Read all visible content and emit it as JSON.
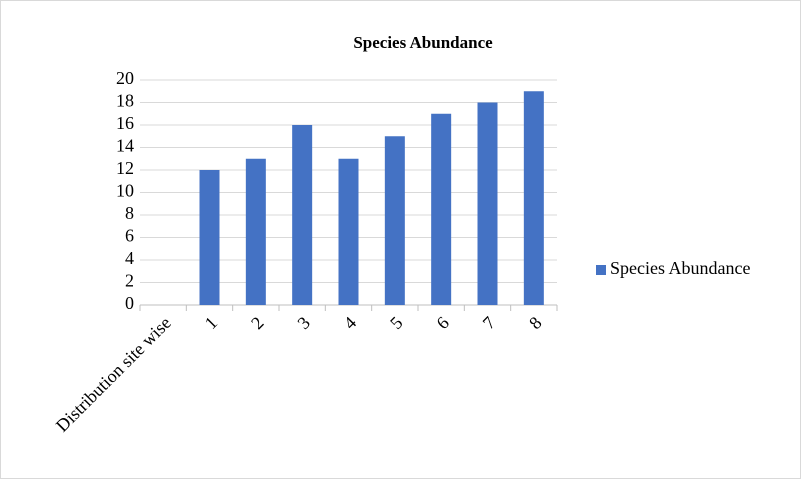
{
  "chart_data": {
    "type": "bar",
    "title": "Species Abundance",
    "categories": [
      "Distribution site wise",
      "1",
      "2",
      "3",
      "4",
      "5",
      "6",
      "7",
      "8"
    ],
    "series": [
      {
        "name": "Species Abundance",
        "color": "#4472c4",
        "values": [
          null,
          12,
          13,
          16,
          13,
          15,
          17,
          18,
          19
        ]
      }
    ],
    "ylim": [
      0,
      20
    ],
    "yticks": [
      0,
      2,
      4,
      6,
      8,
      10,
      12,
      14,
      16,
      18,
      20
    ],
    "grid": true,
    "legend": "right"
  }
}
